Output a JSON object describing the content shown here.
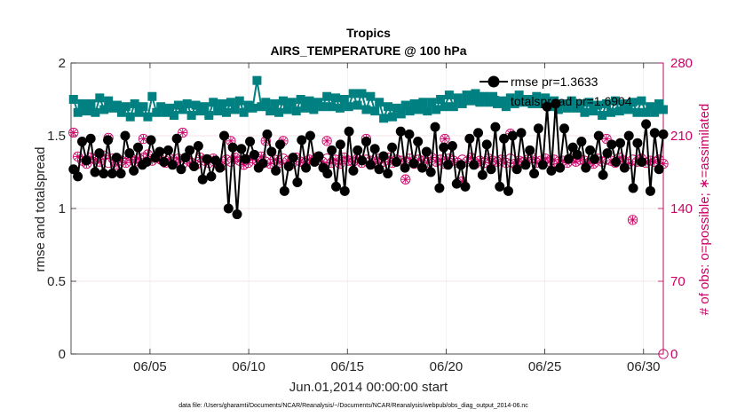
{
  "chart_data": {
    "type": "line",
    "title": "Tropics",
    "subtitle": "AIRS_TEMPERATURE @ 100 hPa",
    "xlabel": "Jun.01,2014 00:00:00 start",
    "ylabel": "rmse and totalspread",
    "y2label": "# of obs: o=possible; ∗=assimilated",
    "xlim": [
      1,
      31
    ],
    "ylim": [
      0,
      2
    ],
    "y2lim": [
      0,
      280
    ],
    "x_ticks": [
      5,
      10,
      15,
      20,
      25,
      30
    ],
    "x_tick_labels": [
      "06/05",
      "06/10",
      "06/15",
      "06/20",
      "06/25",
      "06/30"
    ],
    "y_ticks": [
      0,
      0.5,
      1,
      1.5,
      2
    ],
    "y_tick_labels": [
      "0",
      "0.5",
      "1",
      "1.5",
      "2"
    ],
    "y2_ticks": [
      0,
      70,
      140,
      210,
      280
    ],
    "y2_tick_labels": [
      "0",
      "70",
      "140",
      "210",
      "280"
    ],
    "footnote": "data file: /Users/gharamti/Documents/NCAR/Reanalysis/~/Documents/NCAR/Reanalysis/webpub/obs_diag_output_2014-06.nc",
    "legend_position": "top-right",
    "grid": true,
    "colors": {
      "rmse": "#000000",
      "totalspread": "#008080",
      "obs": "#cc0066"
    },
    "series": [
      {
        "name": "rmse",
        "legend": "rmse pr=1.3633",
        "axis": "left",
        "values": [
          1.27,
          1.22,
          1.46,
          1.33,
          1.48,
          1.25,
          1.38,
          1.24,
          1.47,
          1.24,
          1.35,
          1.24,
          1.5,
          1.38,
          1.26,
          1.42,
          1.3,
          1.32,
          1.47,
          1.35,
          1.39,
          1.32,
          1.4,
          1.3,
          1.48,
          1.27,
          1.35,
          1.4,
          1.29,
          1.43,
          1.2,
          1.34,
          1.22,
          1.33,
          1.28,
          1.5,
          1.0,
          1.42,
          0.96,
          1.41,
          1.34,
          1.46,
          1.37,
          1.28,
          1.31,
          1.51,
          1.39,
          1.26,
          1.44,
          1.12,
          1.29,
          1.35,
          1.18,
          1.47,
          1.28,
          1.5,
          1.32,
          1.36,
          1.28,
          1.24,
          1.4,
          1.15,
          1.44,
          1.12,
          1.53,
          1.26,
          1.4,
          1.33,
          1.46,
          1.3,
          1.41,
          1.27,
          1.36,
          1.24,
          1.42,
          1.32,
          1.53,
          1.28,
          1.51,
          1.31,
          1.46,
          1.28,
          1.39,
          1.25,
          1.56,
          1.14,
          1.42,
          1.3,
          1.43,
          1.17,
          1.3,
          1.15,
          1.48,
          1.3,
          1.52,
          1.23,
          1.44,
          1.27,
          1.56,
          1.15,
          1.48,
          1.12,
          1.5,
          1.27,
          1.52,
          1.3,
          1.4,
          1.24,
          1.55,
          1.3,
          1.7,
          1.26,
          1.72,
          1.28,
          1.55,
          1.34,
          1.42,
          1.37,
          1.46,
          1.28,
          1.4,
          1.34,
          1.5,
          1.23,
          1.38,
          1.44,
          1.32,
          1.45,
          1.28,
          1.5,
          1.14,
          1.45,
          1.32,
          1.58,
          1.12,
          1.52,
          1.27,
          1.51
        ],
        "note": "totals"
      },
      {
        "name": "totalspread",
        "legend": "totalspread pr=1.6904",
        "axis": "left",
        "values": [
          1.75,
          1.66,
          1.72,
          1.67,
          1.72,
          1.66,
          1.76,
          1.68,
          1.74,
          1.69,
          1.71,
          1.66,
          1.7,
          1.63,
          1.72,
          1.66,
          1.7,
          1.63,
          1.77,
          1.66,
          1.7,
          1.66,
          1.69,
          1.64,
          1.71,
          1.68,
          1.72,
          1.64,
          1.71,
          1.67,
          1.7,
          1.64,
          1.73,
          1.67,
          1.72,
          1.66,
          1.73,
          1.68,
          1.74,
          1.66,
          1.71,
          1.69,
          1.88,
          1.7,
          1.73,
          1.67,
          1.72,
          1.66,
          1.74,
          1.68,
          1.73,
          1.67,
          1.75,
          1.69,
          1.74,
          1.68,
          1.73,
          1.7,
          1.77,
          1.7,
          1.76,
          1.69,
          1.75,
          1.7,
          1.79,
          1.71,
          1.79,
          1.68,
          1.77,
          1.67,
          1.73,
          1.62,
          1.7,
          1.63,
          1.69,
          1.65,
          1.71,
          1.67,
          1.72,
          1.68,
          1.73,
          1.67,
          1.73,
          1.68,
          1.75,
          1.7,
          1.78,
          1.7,
          1.76,
          1.72,
          1.78,
          1.74,
          1.79,
          1.73,
          1.77,
          1.73,
          1.77,
          1.72,
          1.74,
          1.7,
          1.76,
          1.72,
          1.78,
          1.73,
          1.75,
          1.72,
          1.77,
          1.72,
          1.76,
          1.7,
          1.74,
          1.68,
          1.72,
          1.69,
          1.74,
          1.69,
          1.72,
          1.66,
          1.73,
          1.67,
          1.71,
          1.64,
          1.72,
          1.66,
          1.74,
          1.67,
          1.72,
          1.68,
          1.73,
          1.66,
          1.74,
          1.66,
          1.7,
          1.66,
          1.72,
          1.68
        ],
        "note": "totals"
      },
      {
        "name": "obs_possible",
        "axis": "right",
        "values": [
          213,
          190,
          186,
          183,
          189,
          187,
          185,
          191,
          184,
          188,
          182,
          186,
          184,
          190,
          185,
          188,
          189,
          192,
          186,
          189,
          187,
          184,
          188,
          185,
          188,
          183,
          187,
          184,
          182,
          189,
          186,
          184,
          188,
          183,
          181,
          187,
          185,
          189,
          186,
          182,
          184,
          188,
          186,
          190,
          185,
          183,
          187,
          184,
          188,
          186,
          183,
          189,
          185,
          184,
          187,
          186,
          190,
          185,
          188,
          184,
          187,
          183,
          189,
          186,
          185,
          188,
          184,
          187,
          186,
          183,
          188,
          185,
          189,
          184,
          187,
          186,
          185,
          188,
          183,
          187,
          186,
          184,
          189,
          185,
          187,
          183,
          188,
          186,
          184,
          187,
          185,
          189,
          183,
          186,
          184,
          188,
          186,
          185,
          187,
          184,
          188,
          183,
          186,
          185,
          187,
          189,
          184,
          186,
          188,
          185,
          187,
          183,
          186,
          184,
          188,
          185,
          187,
          186,
          184,
          183,
          188,
          185,
          187,
          186,
          184,
          189,
          186,
          183,
          187,
          185,
          188,
          184,
          186,
          185,
          187,
          183
        ],
        "note": "drawn as open circles"
      },
      {
        "name": "obs_assimilated",
        "axis": "right",
        "values": [
          213,
          190,
          186,
          183,
          189,
          187,
          185,
          191,
          208,
          188,
          182,
          186,
          184,
          190,
          185,
          188,
          207,
          192,
          186,
          189,
          187,
          184,
          188,
          185,
          188,
          213,
          187,
          184,
          182,
          189,
          186,
          184,
          188,
          183,
          181,
          187,
          205,
          189,
          186,
          182,
          184,
          188,
          186,
          190,
          205,
          183,
          187,
          184,
          205,
          186,
          183,
          189,
          185,
          184,
          187,
          186,
          190,
          185,
          205,
          184,
          187,
          183,
          189,
          186,
          185,
          188,
          184,
          207,
          186,
          183,
          188,
          185,
          189,
          184,
          187,
          186,
          168,
          188,
          183,
          187,
          186,
          184,
          189,
          185,
          187,
          207,
          188,
          186,
          184,
          166,
          185,
          189,
          183,
          186,
          184,
          188,
          186,
          185,
          187,
          184,
          212,
          183,
          186,
          185,
          187,
          189,
          184,
          186,
          188,
          185,
          187,
          183,
          186,
          184,
          188,
          185,
          187,
          186,
          184,
          183,
          188,
          185,
          207,
          186,
          184,
          189,
          186,
          183,
          129,
          185,
          188,
          184,
          186,
          185,
          187,
          183
        ],
        "note": "drawn as asterisks"
      }
    ]
  }
}
